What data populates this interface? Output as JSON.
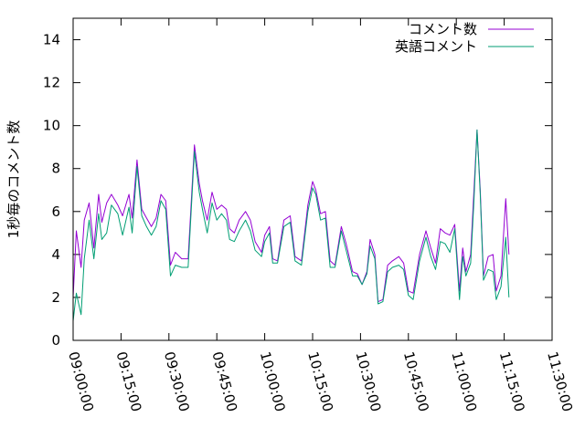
{
  "chart_data": {
    "type": "line",
    "title": "",
    "xlabel": "",
    "ylabel": "1秒毎のコメント数",
    "ylim": [
      0,
      15
    ],
    "xlim": [
      "09:00:00",
      "11:30:00"
    ],
    "grid": false,
    "legend_position": "top-right",
    "yticks": [
      "0",
      "2",
      "4",
      "6",
      "8",
      "10",
      "12",
      "14"
    ],
    "xticks": [
      "09:00:00",
      "09:15:00",
      "09:30:00",
      "09:45:00",
      "10:00:00",
      "10:15:00",
      "10:30:00",
      "10:45:00",
      "11:00:00",
      "11:15:00",
      "11:30:00"
    ],
    "series": [
      {
        "name": "コメント数",
        "color": "#9400d3",
        "points": [
          [
            "09:00:00",
            2.0
          ],
          [
            "09:01:00",
            5.1
          ],
          [
            "09:02:30",
            3.4
          ],
          [
            "09:03:30",
            5.6
          ],
          [
            "09:05:00",
            6.4
          ],
          [
            "09:06:30",
            4.3
          ],
          [
            "09:08:00",
            6.8
          ],
          [
            "09:09:00",
            5.5
          ],
          [
            "09:10:30",
            6.4
          ],
          [
            "09:12:00",
            6.8
          ],
          [
            "09:14:00",
            6.3
          ],
          [
            "09:15:30",
            5.8
          ],
          [
            "09:17:30",
            6.8
          ],
          [
            "09:18:30",
            5.7
          ],
          [
            "09:20:00",
            8.4
          ],
          [
            "09:21:30",
            6.1
          ],
          [
            "09:23:00",
            5.7
          ],
          [
            "09:24:30",
            5.3
          ],
          [
            "09:26:00",
            5.7
          ],
          [
            "09:27:30",
            6.8
          ],
          [
            "09:29:00",
            6.5
          ],
          [
            "09:30:30",
            3.5
          ],
          [
            "09:32:00",
            4.1
          ],
          [
            "09:34:00",
            3.8
          ],
          [
            "09:36:00",
            3.8
          ],
          [
            "09:38:00",
            9.1
          ],
          [
            "09:39:30",
            7.3
          ],
          [
            "09:40:30",
            6.5
          ],
          [
            "09:42:00",
            5.6
          ],
          [
            "09:43:30",
            6.9
          ],
          [
            "09:45:00",
            6.1
          ],
          [
            "09:46:30",
            6.3
          ],
          [
            "09:48:00",
            6.1
          ],
          [
            "09:49:00",
            5.2
          ],
          [
            "09:50:30",
            5.0
          ],
          [
            "09:52:00",
            5.6
          ],
          [
            "09:54:00",
            6.0
          ],
          [
            "09:55:30",
            5.6
          ],
          [
            "09:57:00",
            4.6
          ],
          [
            "09:59:00",
            4.1
          ],
          [
            "10:00:00",
            4.9
          ],
          [
            "10:01:30",
            5.3
          ],
          [
            "10:02:30",
            3.8
          ],
          [
            "10:04:00",
            3.7
          ],
          [
            "10:06:00",
            5.6
          ],
          [
            "10:08:00",
            5.8
          ],
          [
            "10:09:30",
            3.9
          ],
          [
            "10:11:30",
            3.7
          ],
          [
            "10:13:30",
            6.3
          ],
          [
            "10:15:00",
            7.4
          ],
          [
            "10:16:00",
            7.0
          ],
          [
            "10:17:30",
            5.9
          ],
          [
            "10:19:00",
            6.0
          ],
          [
            "10:20:30",
            3.7
          ],
          [
            "10:22:00",
            3.5
          ],
          [
            "10:24:00",
            5.3
          ],
          [
            "10:25:30",
            4.5
          ],
          [
            "10:27:30",
            3.2
          ],
          [
            "10:29:00",
            3.1
          ],
          [
            "10:30:30",
            2.6
          ],
          [
            "10:32:00",
            3.2
          ],
          [
            "10:33:00",
            4.7
          ],
          [
            "10:34:30",
            4.0
          ],
          [
            "10:35:30",
            1.8
          ],
          [
            "10:37:00",
            1.9
          ],
          [
            "10:38:30",
            3.5
          ],
          [
            "10:40:00",
            3.7
          ],
          [
            "10:42:00",
            3.9
          ],
          [
            "10:43:30",
            3.6
          ],
          [
            "10:45:00",
            2.3
          ],
          [
            "10:46:30",
            2.2
          ],
          [
            "10:48:30",
            4.0
          ],
          [
            "10:50:30",
            5.1
          ],
          [
            "10:52:00",
            4.3
          ],
          [
            "10:53:30",
            3.6
          ],
          [
            "10:55:00",
            5.2
          ],
          [
            "10:56:30",
            5.0
          ],
          [
            "10:58:00",
            4.9
          ],
          [
            "10:59:30",
            5.4
          ],
          [
            "11:01:00",
            2.3
          ],
          [
            "11:02:00",
            4.3
          ],
          [
            "11:03:00",
            3.2
          ],
          [
            "11:04:30",
            4.0
          ],
          [
            "11:05:30",
            6.9
          ],
          [
            "11:06:30",
            9.8
          ],
          [
            "11:07:30",
            7.0
          ],
          [
            "11:08:30",
            3.0
          ],
          [
            "11:10:00",
            3.9
          ],
          [
            "11:11:30",
            4.0
          ],
          [
            "11:12:30",
            2.3
          ],
          [
            "11:14:00",
            3.0
          ],
          [
            "11:15:30",
            6.6
          ],
          [
            "11:16:30",
            4.0
          ]
        ]
      },
      {
        "name": "英語コメント",
        "color": "#009e73",
        "points": [
          [
            "09:00:00",
            0.9
          ],
          [
            "09:01:00",
            2.2
          ],
          [
            "09:02:30",
            1.2
          ],
          [
            "09:03:30",
            3.8
          ],
          [
            "09:05:00",
            5.6
          ],
          [
            "09:06:30",
            3.8
          ],
          [
            "09:08:00",
            5.9
          ],
          [
            "09:09:00",
            4.7
          ],
          [
            "09:10:30",
            5.0
          ],
          [
            "09:12:00",
            6.3
          ],
          [
            "09:14:00",
            5.9
          ],
          [
            "09:15:30",
            4.9
          ],
          [
            "09:17:30",
            6.2
          ],
          [
            "09:18:30",
            5.0
          ],
          [
            "09:20:00",
            8.1
          ],
          [
            "09:21:30",
            5.8
          ],
          [
            "09:23:00",
            5.3
          ],
          [
            "09:24:30",
            4.9
          ],
          [
            "09:26:00",
            5.3
          ],
          [
            "09:27:30",
            6.5
          ],
          [
            "09:29:00",
            6.1
          ],
          [
            "09:30:30",
            3.0
          ],
          [
            "09:32:00",
            3.5
          ],
          [
            "09:34:00",
            3.4
          ],
          [
            "09:36:00",
            3.4
          ],
          [
            "09:38:00",
            8.8
          ],
          [
            "09:39:30",
            6.9
          ],
          [
            "09:40:30",
            6.1
          ],
          [
            "09:42:00",
            5.0
          ],
          [
            "09:43:30",
            6.4
          ],
          [
            "09:45:00",
            5.6
          ],
          [
            "09:46:30",
            5.9
          ],
          [
            "09:48:00",
            5.6
          ],
          [
            "09:49:00",
            4.7
          ],
          [
            "09:50:30",
            4.6
          ],
          [
            "09:52:00",
            5.1
          ],
          [
            "09:54:00",
            5.6
          ],
          [
            "09:55:30",
            5.1
          ],
          [
            "09:57:00",
            4.2
          ],
          [
            "09:59:00",
            3.9
          ],
          [
            "10:00:00",
            4.6
          ],
          [
            "10:01:30",
            5.0
          ],
          [
            "10:02:30",
            3.6
          ],
          [
            "10:04:00",
            3.6
          ],
          [
            "10:06:00",
            5.3
          ],
          [
            "10:08:00",
            5.5
          ],
          [
            "10:09:30",
            3.7
          ],
          [
            "10:11:30",
            3.5
          ],
          [
            "10:13:30",
            6.0
          ],
          [
            "10:15:00",
            7.1
          ],
          [
            "10:16:00",
            6.8
          ],
          [
            "10:17:30",
            5.6
          ],
          [
            "10:19:00",
            5.7
          ],
          [
            "10:20:30",
            3.4
          ],
          [
            "10:22:00",
            3.4
          ],
          [
            "10:24:00",
            5.1
          ],
          [
            "10:25:30",
            4.2
          ],
          [
            "10:27:30",
            3.0
          ],
          [
            "10:29:00",
            3.0
          ],
          [
            "10:30:30",
            2.6
          ],
          [
            "10:32:00",
            3.1
          ],
          [
            "10:33:00",
            4.4
          ],
          [
            "10:34:30",
            3.8
          ],
          [
            "10:35:30",
            1.7
          ],
          [
            "10:37:00",
            1.8
          ],
          [
            "10:38:30",
            3.2
          ],
          [
            "10:40:00",
            3.4
          ],
          [
            "10:42:00",
            3.5
          ],
          [
            "10:43:30",
            3.3
          ],
          [
            "10:45:00",
            2.1
          ],
          [
            "10:46:30",
            1.9
          ],
          [
            "10:48:30",
            3.7
          ],
          [
            "10:50:30",
            4.8
          ],
          [
            "10:52:00",
            3.9
          ],
          [
            "10:53:30",
            3.3
          ],
          [
            "10:55:00",
            4.6
          ],
          [
            "10:56:30",
            4.5
          ],
          [
            "10:58:00",
            4.1
          ],
          [
            "10:59:30",
            5.2
          ],
          [
            "11:01:00",
            1.9
          ],
          [
            "11:02:00",
            3.9
          ],
          [
            "11:03:00",
            3.0
          ],
          [
            "11:04:30",
            3.6
          ],
          [
            "11:05:30",
            6.4
          ],
          [
            "11:06:30",
            9.8
          ],
          [
            "11:07:30",
            6.8
          ],
          [
            "11:08:30",
            2.8
          ],
          [
            "11:10:00",
            3.3
          ],
          [
            "11:11:30",
            3.2
          ],
          [
            "11:12:30",
            1.9
          ],
          [
            "11:14:00",
            2.5
          ],
          [
            "11:15:30",
            4.8
          ],
          [
            "11:16:30",
            2.0
          ]
        ]
      }
    ]
  }
}
